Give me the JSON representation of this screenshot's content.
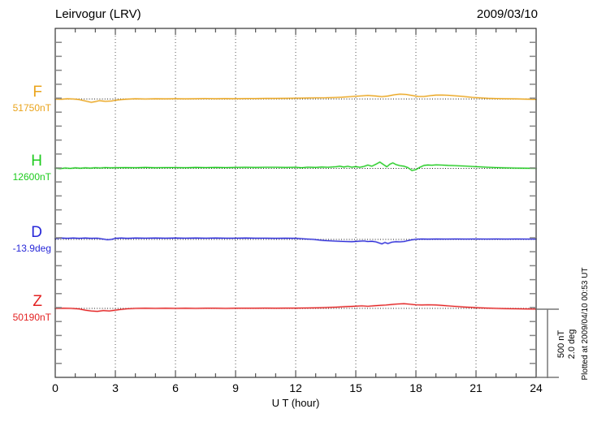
{
  "header": {
    "title": "Leirvogur (LRV)",
    "date": "2009/03/10"
  },
  "colors": {
    "F": "#eaa41c",
    "H": "#1ecb1e",
    "D": "#2727d8",
    "Z": "#e32222",
    "frame": "#333333",
    "hour_tick": "#444444",
    "y_tick": "#858585",
    "gridline": "#555555",
    "baseline": "#222222",
    "scalebar": "#777777"
  },
  "chart_data": {
    "type": "line",
    "title": "Leirvogur (LRV)",
    "date": "2009/03/10",
    "xlabel": "U T (hour)",
    "xlim": [
      0,
      24
    ],
    "x_major_step_hours": 3,
    "x_minor_step_hours": 1,
    "x_tick_labels": [
      "0",
      "3",
      "6",
      "9",
      "12",
      "15",
      "18",
      "21",
      "24"
    ],
    "grid": "dotted vertical at 3-hour marks, dotted horizontal baseline per trace",
    "legend_position": "left margin, one colored label per trace",
    "scale_bar": {
      "line1": "500 nT",
      "line2": "2.0 deg",
      "nT": 500,
      "deg": 2.0
    },
    "footnote": "Plotted at 2009/04/10 00:53 UT",
    "series": [
      {
        "name": "F",
        "color_key": "F",
        "unit": "nT",
        "baseline_label": "51750nT",
        "baseline_value": 51750,
        "points": [
          [
            0,
            0
          ],
          [
            0.3,
            -2
          ],
          [
            0.6,
            2
          ],
          [
            0.9,
            0
          ],
          [
            1.2,
            -4
          ],
          [
            1.5,
            -14
          ],
          [
            1.8,
            -24
          ],
          [
            2.0,
            -19
          ],
          [
            2.2,
            -12
          ],
          [
            2.5,
            -17
          ],
          [
            2.8,
            -15
          ],
          [
            3.0,
            -9
          ],
          [
            3.3,
            -4
          ],
          [
            3.6,
            -1
          ],
          [
            4,
            2
          ],
          [
            4.5,
            0
          ],
          [
            5,
            2
          ],
          [
            5.5,
            1
          ],
          [
            6,
            2
          ],
          [
            6.5,
            1
          ],
          [
            7,
            2
          ],
          [
            7.5,
            3
          ],
          [
            8,
            2
          ],
          [
            8.5,
            3
          ],
          [
            9,
            2
          ],
          [
            9.5,
            3
          ],
          [
            10,
            3
          ],
          [
            10.5,
            4
          ],
          [
            11,
            4
          ],
          [
            11.5,
            5
          ],
          [
            12,
            6
          ],
          [
            12.5,
            7
          ],
          [
            13,
            8
          ],
          [
            13.5,
            9
          ],
          [
            14,
            11
          ],
          [
            14.3,
            13
          ],
          [
            14.7,
            17
          ],
          [
            15,
            20
          ],
          [
            15.3,
            23
          ],
          [
            15.6,
            26
          ],
          [
            16,
            22
          ],
          [
            16.3,
            17
          ],
          [
            16.6,
            22
          ],
          [
            16.9,
            30
          ],
          [
            17.2,
            35
          ],
          [
            17.5,
            33
          ],
          [
            17.8,
            26
          ],
          [
            18.1,
            19
          ],
          [
            18.4,
            18
          ],
          [
            18.7,
            24
          ],
          [
            19,
            28
          ],
          [
            19.3,
            29
          ],
          [
            19.6,
            27
          ],
          [
            20,
            23
          ],
          [
            20.4,
            18
          ],
          [
            20.8,
            12
          ],
          [
            21.2,
            8
          ],
          [
            21.6,
            5
          ],
          [
            22,
            3
          ],
          [
            22.5,
            2
          ],
          [
            23,
            1
          ],
          [
            23.5,
            -1
          ],
          [
            24,
            -3
          ]
        ]
      },
      {
        "name": "H",
        "color_key": "H",
        "unit": "nT",
        "baseline_label": "12600nT",
        "baseline_value": 12600,
        "points": [
          [
            0,
            2
          ],
          [
            0.25,
            -2
          ],
          [
            0.5,
            3
          ],
          [
            0.75,
            0
          ],
          [
            1,
            4
          ],
          [
            1.25,
            1
          ],
          [
            1.5,
            4
          ],
          [
            1.75,
            2
          ],
          [
            2,
            5
          ],
          [
            2.25,
            3
          ],
          [
            2.5,
            6
          ],
          [
            2.75,
            4
          ],
          [
            3,
            5
          ],
          [
            3.5,
            6
          ],
          [
            4,
            5
          ],
          [
            4.5,
            7
          ],
          [
            5,
            5
          ],
          [
            5.5,
            6
          ],
          [
            6,
            6
          ],
          [
            6.5,
            5
          ],
          [
            7,
            7
          ],
          [
            7.5,
            6
          ],
          [
            8,
            7
          ],
          [
            8.5,
            6
          ],
          [
            9,
            7
          ],
          [
            9.5,
            8
          ],
          [
            10,
            7
          ],
          [
            10.5,
            8
          ],
          [
            11,
            8
          ],
          [
            11.5,
            7
          ],
          [
            12,
            8
          ],
          [
            12.3,
            5
          ],
          [
            12.6,
            9
          ],
          [
            13,
            7
          ],
          [
            13.3,
            10
          ],
          [
            13.6,
            8
          ],
          [
            14,
            12
          ],
          [
            14.2,
            16
          ],
          [
            14.4,
            10
          ],
          [
            14.6,
            15
          ],
          [
            14.8,
            9
          ],
          [
            15,
            13
          ],
          [
            15.2,
            8
          ],
          [
            15.4,
            14
          ],
          [
            15.6,
            24
          ],
          [
            15.8,
            16
          ],
          [
            16,
            30
          ],
          [
            16.2,
            46
          ],
          [
            16.4,
            26
          ],
          [
            16.55,
            12
          ],
          [
            16.7,
            30
          ],
          [
            16.85,
            40
          ],
          [
            17,
            28
          ],
          [
            17.2,
            20
          ],
          [
            17.4,
            16
          ],
          [
            17.6,
            6
          ],
          [
            17.8,
            -15
          ],
          [
            18,
            -9
          ],
          [
            18.2,
            8
          ],
          [
            18.4,
            22
          ],
          [
            18.6,
            25
          ],
          [
            18.8,
            23
          ],
          [
            19,
            26
          ],
          [
            19.3,
            24
          ],
          [
            19.6,
            22
          ],
          [
            20,
            20
          ],
          [
            20.4,
            17
          ],
          [
            20.8,
            14
          ],
          [
            21.2,
            11
          ],
          [
            21.6,
            8
          ],
          [
            22,
            6
          ],
          [
            22.4,
            4
          ],
          [
            22.8,
            3
          ],
          [
            23.2,
            2
          ],
          [
            23.6,
            1
          ],
          [
            24,
            0
          ]
        ]
      },
      {
        "name": "D",
        "color_key": "D",
        "unit": "deg",
        "baseline_label": "-13.9deg",
        "baseline_value": -13.9,
        "points": [
          [
            0,
            0.02
          ],
          [
            0.3,
            0.04
          ],
          [
            0.6,
            0.03
          ],
          [
            0.9,
            0.04
          ],
          [
            1.2,
            0.03
          ],
          [
            1.5,
            0.04
          ],
          [
            1.8,
            0.03
          ],
          [
            2.1,
            0.035
          ],
          [
            2.4,
            0.01
          ],
          [
            2.6,
            -0.01
          ],
          [
            2.8,
            0.0
          ],
          [
            3,
            0.03
          ],
          [
            3.3,
            0.04
          ],
          [
            3.6,
            0.03
          ],
          [
            4,
            0.04
          ],
          [
            4.5,
            0.035
          ],
          [
            5,
            0.04
          ],
          [
            5.5,
            0.035
          ],
          [
            6,
            0.04
          ],
          [
            6.5,
            0.035
          ],
          [
            7,
            0.04
          ],
          [
            7.5,
            0.035
          ],
          [
            8,
            0.04
          ],
          [
            8.5,
            0.035
          ],
          [
            9,
            0.035
          ],
          [
            9.5,
            0.04
          ],
          [
            10,
            0.035
          ],
          [
            10.5,
            0.035
          ],
          [
            11,
            0.03
          ],
          [
            11.5,
            0.035
          ],
          [
            12,
            0.03
          ],
          [
            12.3,
            0.02
          ],
          [
            12.6,
            0.01
          ],
          [
            12.9,
            0.0
          ],
          [
            13.2,
            -0.02
          ],
          [
            13.5,
            -0.035
          ],
          [
            14,
            -0.05
          ],
          [
            14.5,
            -0.06
          ],
          [
            14.8,
            -0.065
          ],
          [
            15.1,
            -0.055
          ],
          [
            15.4,
            -0.045
          ],
          [
            15.6,
            -0.06
          ],
          [
            15.8,
            -0.055
          ],
          [
            16,
            -0.07
          ],
          [
            16.15,
            -0.1
          ],
          [
            16.3,
            -0.13
          ],
          [
            16.45,
            -0.09
          ],
          [
            16.6,
            -0.12
          ],
          [
            16.8,
            -0.08
          ],
          [
            17,
            -0.065
          ],
          [
            17.2,
            -0.07
          ],
          [
            17.4,
            -0.06
          ],
          [
            17.6,
            -0.035
          ],
          [
            17.8,
            -0.012
          ],
          [
            18,
            0.005
          ],
          [
            18.3,
            0.012
          ],
          [
            18.6,
            0.008
          ],
          [
            19,
            0.012
          ],
          [
            19.5,
            0.01
          ],
          [
            20,
            0.012
          ],
          [
            20.5,
            0.01
          ],
          [
            21,
            0.012
          ],
          [
            21.5,
            0.01
          ],
          [
            22,
            0.012
          ],
          [
            22.5,
            0.01
          ],
          [
            23,
            0.012
          ],
          [
            23.5,
            0.01
          ],
          [
            24,
            0.01
          ]
        ]
      },
      {
        "name": "Z",
        "color_key": "Z",
        "unit": "nT",
        "baseline_label": "50190nT",
        "baseline_value": 50190,
        "points": [
          [
            0,
            0
          ],
          [
            0.4,
            1
          ],
          [
            0.8,
            0
          ],
          [
            1.2,
            -4
          ],
          [
            1.5,
            -13
          ],
          [
            1.8,
            -19
          ],
          [
            2.1,
            -22
          ],
          [
            2.4,
            -16
          ],
          [
            2.7,
            -19
          ],
          [
            3,
            -13
          ],
          [
            3.3,
            -7
          ],
          [
            3.6,
            -3
          ],
          [
            4,
            0
          ],
          [
            4.5,
            1
          ],
          [
            5,
            0
          ],
          [
            5.5,
            1
          ],
          [
            6,
            0
          ],
          [
            6.5,
            1
          ],
          [
            7,
            0
          ],
          [
            7.5,
            1
          ],
          [
            8,
            1
          ],
          [
            8.5,
            0
          ],
          [
            9,
            1
          ],
          [
            9.5,
            1
          ],
          [
            10,
            1
          ],
          [
            10.5,
            2
          ],
          [
            11,
            1
          ],
          [
            11.5,
            2
          ],
          [
            12,
            2
          ],
          [
            12.5,
            3
          ],
          [
            13,
            4
          ],
          [
            13.5,
            6
          ],
          [
            14,
            9
          ],
          [
            14.5,
            13
          ],
          [
            15,
            16
          ],
          [
            15.3,
            18
          ],
          [
            15.6,
            15
          ],
          [
            15.9,
            19
          ],
          [
            16.2,
            22
          ],
          [
            16.5,
            24
          ],
          [
            16.8,
            28
          ],
          [
            17.1,
            32
          ],
          [
            17.4,
            34
          ],
          [
            17.7,
            30
          ],
          [
            18,
            26
          ],
          [
            18.3,
            25
          ],
          [
            18.6,
            26
          ],
          [
            19,
            25
          ],
          [
            19.3,
            22
          ],
          [
            19.6,
            18
          ],
          [
            20,
            14
          ],
          [
            20.4,
            10
          ],
          [
            20.8,
            7
          ],
          [
            21.2,
            4
          ],
          [
            21.6,
            2
          ],
          [
            22,
            0
          ],
          [
            22.5,
            -2
          ],
          [
            23,
            -3
          ],
          [
            23.5,
            -4
          ],
          [
            24,
            -5
          ]
        ]
      }
    ]
  }
}
